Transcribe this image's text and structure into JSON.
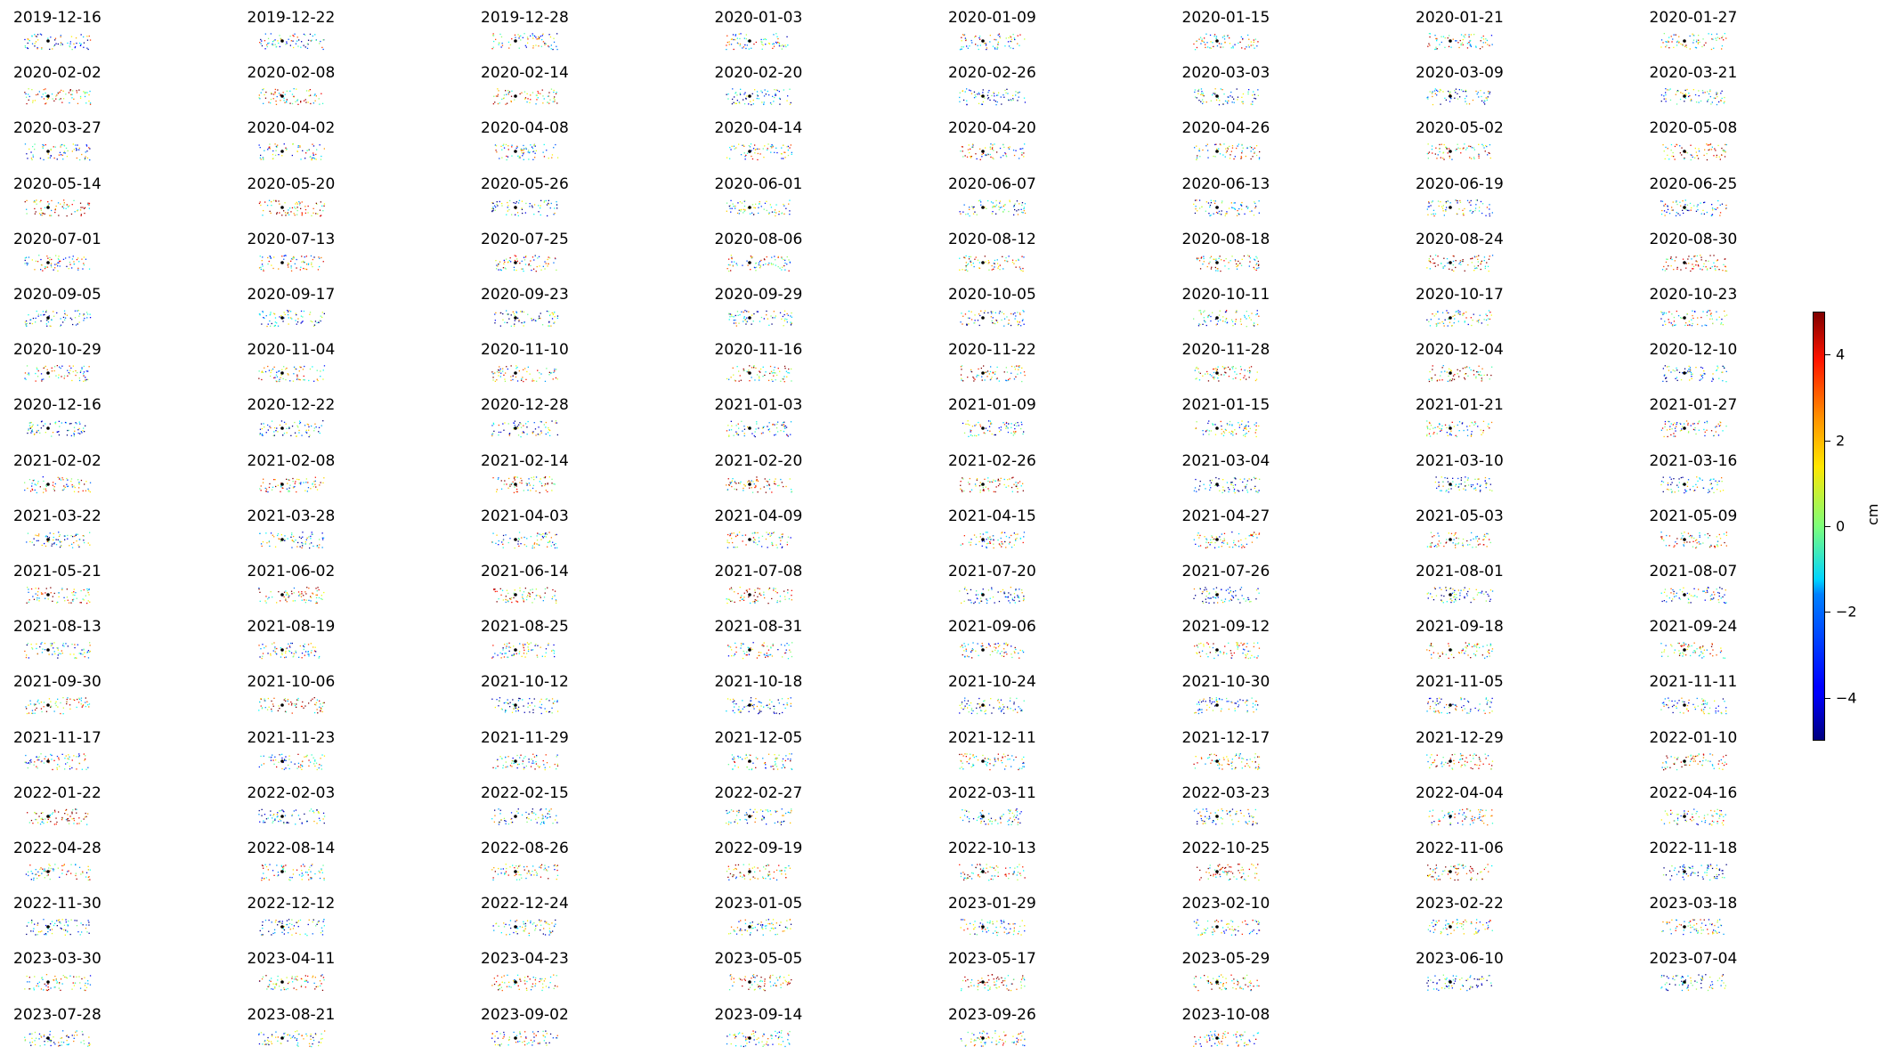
{
  "chart_data": {
    "type": "scatter",
    "description_free": true,
    "panel_layout": {
      "columns": 8
    },
    "panels": [
      "2019-12-16",
      "2019-12-22",
      "2019-12-28",
      "2020-01-03",
      "2020-01-09",
      "2020-01-15",
      "2020-01-21",
      "2020-01-27",
      "2020-02-02",
      "2020-02-08",
      "2020-02-14",
      "2020-02-20",
      "2020-02-26",
      "2020-03-03",
      "2020-03-09",
      "2020-03-21",
      "2020-03-27",
      "2020-04-02",
      "2020-04-08",
      "2020-04-14",
      "2020-04-20",
      "2020-04-26",
      "2020-05-02",
      "2020-05-08",
      "2020-05-14",
      "2020-05-20",
      "2020-05-26",
      "2020-06-01",
      "2020-06-07",
      "2020-06-13",
      "2020-06-19",
      "2020-06-25",
      "2020-07-01",
      "2020-07-13",
      "2020-07-25",
      "2020-08-06",
      "2020-08-12",
      "2020-08-18",
      "2020-08-24",
      "2020-08-30",
      "2020-09-05",
      "2020-09-17",
      "2020-09-23",
      "2020-09-29",
      "2020-10-05",
      "2020-10-11",
      "2020-10-17",
      "2020-10-23",
      "2020-10-29",
      "2020-11-04",
      "2020-11-10",
      "2020-11-16",
      "2020-11-22",
      "2020-11-28",
      "2020-12-04",
      "2020-12-10",
      "2020-12-16",
      "2020-12-22",
      "2020-12-28",
      "2021-01-03",
      "2021-01-09",
      "2021-01-15",
      "2021-01-21",
      "2021-01-27",
      "2021-02-02",
      "2021-02-08",
      "2021-02-14",
      "2021-02-20",
      "2021-02-26",
      "2021-03-04",
      "2021-03-10",
      "2021-03-16",
      "2021-03-22",
      "2021-03-28",
      "2021-04-03",
      "2021-04-09",
      "2021-04-15",
      "2021-04-27",
      "2021-05-03",
      "2021-05-09",
      "2021-05-21",
      "2021-06-02",
      "2021-06-14",
      "2021-07-08",
      "2021-07-20",
      "2021-07-26",
      "2021-08-01",
      "2021-08-07",
      "2021-08-13",
      "2021-08-19",
      "2021-08-25",
      "2021-08-31",
      "2021-09-06",
      "2021-09-12",
      "2021-09-18",
      "2021-09-24",
      "2021-09-30",
      "2021-10-06",
      "2021-10-12",
      "2021-10-18",
      "2021-10-24",
      "2021-10-30",
      "2021-11-05",
      "2021-11-11",
      "2021-11-17",
      "2021-11-23",
      "2021-11-29",
      "2021-12-05",
      "2021-12-11",
      "2021-12-17",
      "2021-12-29",
      "2022-01-10",
      "2022-01-22",
      "2022-02-03",
      "2022-02-15",
      "2022-02-27",
      "2022-03-11",
      "2022-03-23",
      "2022-04-04",
      "2022-04-16",
      "2022-04-28",
      "2022-08-14",
      "2022-08-26",
      "2022-09-19",
      "2022-10-13",
      "2022-10-25",
      "2022-11-06",
      "2022-11-18",
      "2022-11-30",
      "2022-12-12",
      "2022-12-24",
      "2023-01-05",
      "2023-01-29",
      "2023-02-10",
      "2023-02-22",
      "2023-03-18",
      "2023-03-30",
      "2023-04-11",
      "2023-04-23",
      "2023-05-05",
      "2023-05-17",
      "2023-05-29",
      "2023-06-10",
      "2023-07-04",
      "2023-07-28",
      "2023-08-21",
      "2023-09-02",
      "2023-09-14",
      "2023-09-26",
      "2023-10-08"
    ],
    "colorbar": {
      "label": "cm",
      "range": [
        -5,
        5
      ],
      "ticks": [
        4,
        2,
        0,
        -2,
        -4
      ],
      "tick_labels": [
        "4",
        "2",
        "0",
        "−2",
        "−4"
      ],
      "colormap": "jet"
    },
    "grid": false,
    "axes": false
  }
}
